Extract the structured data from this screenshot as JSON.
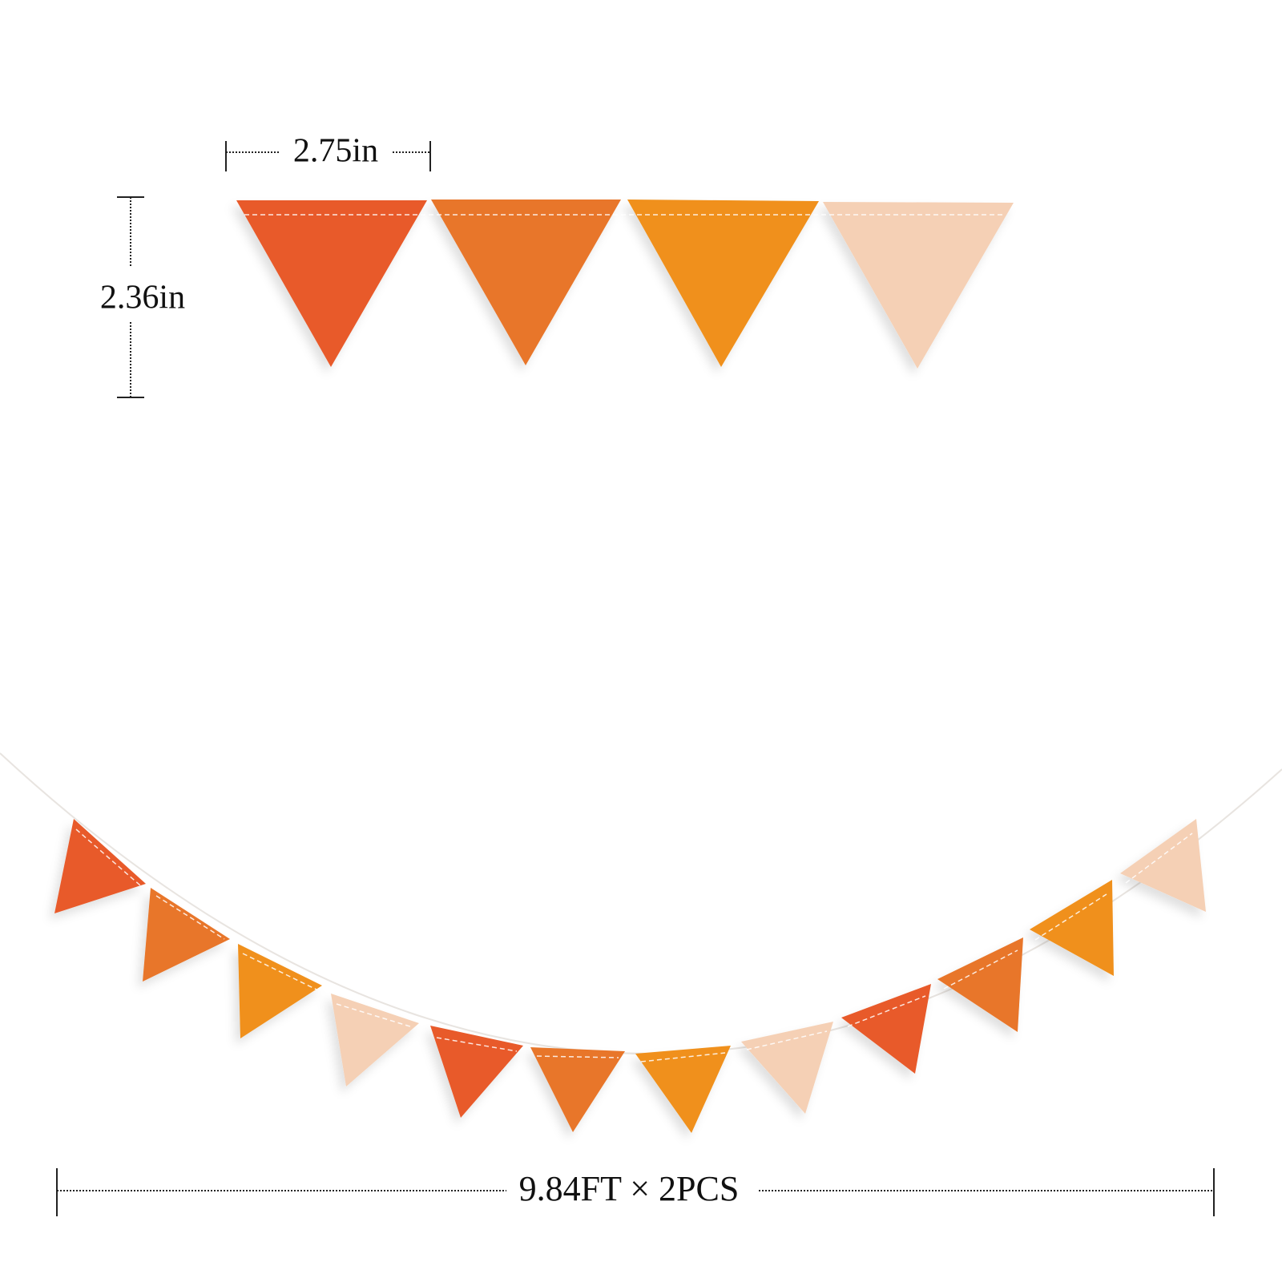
{
  "dimensions": {
    "width": "2.75in",
    "height": "2.36in",
    "length": "9.84FT × 2PCS"
  }
}
